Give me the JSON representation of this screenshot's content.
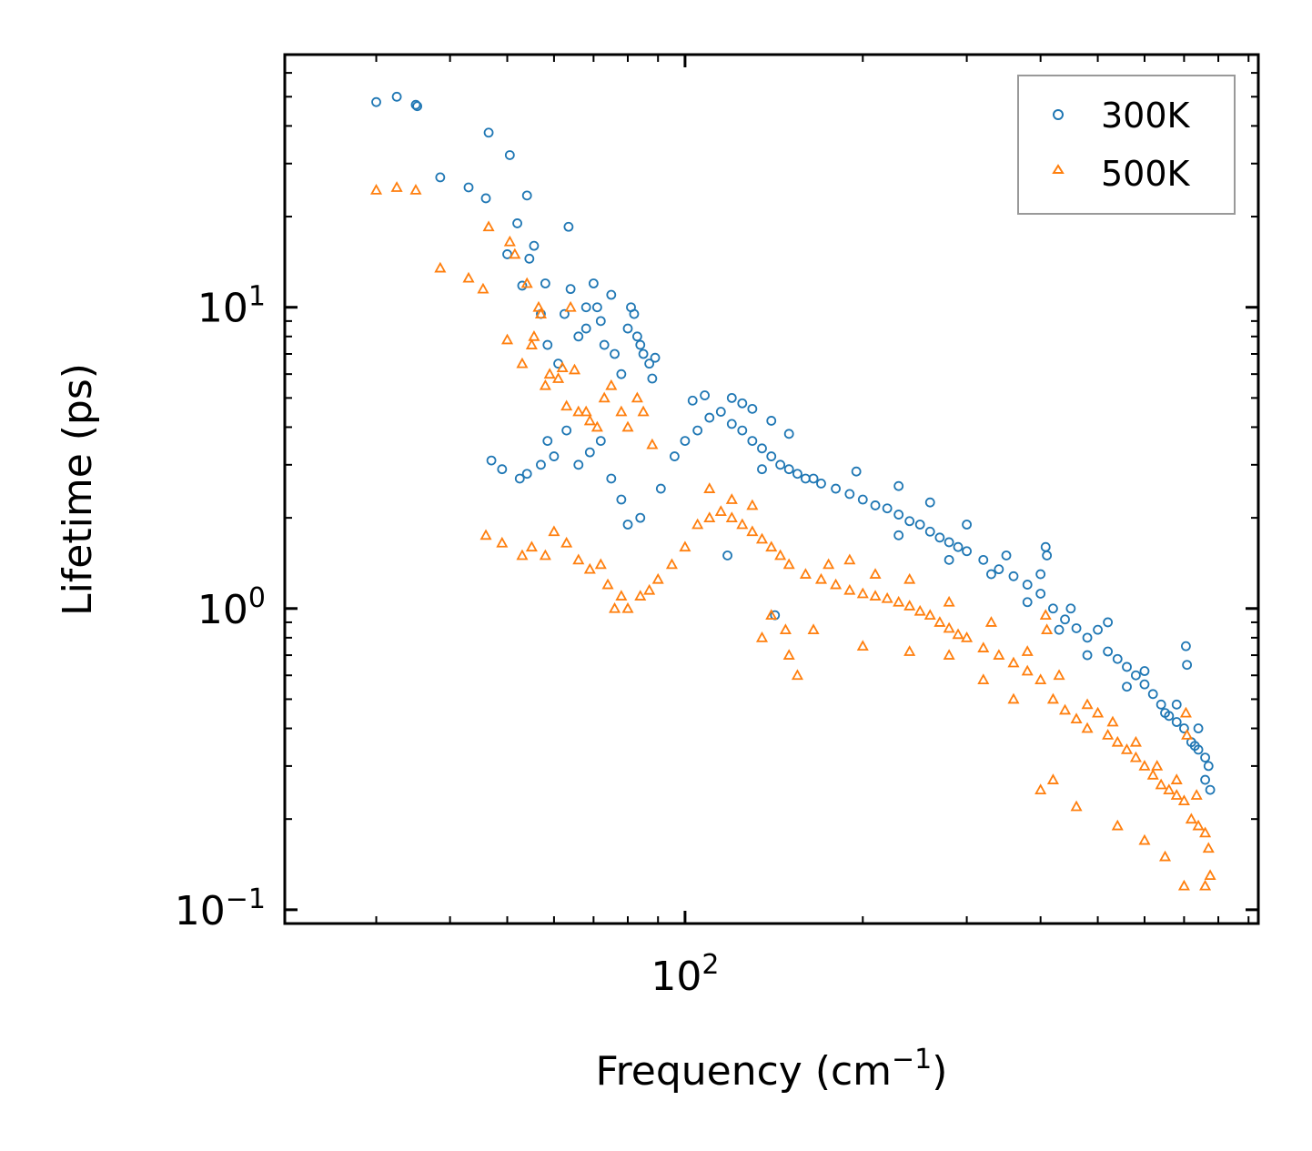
{
  "chart_data": {
    "type": "scatter",
    "title": "",
    "xlabel": "Frequency (cm",
    "xlabel_sup": "−1",
    "xlabel_close": ")",
    "ylabel": "Lifetime (ps)",
    "xscale": "log",
    "yscale": "log",
    "xlim": [
      21,
      935
    ],
    "ylim": [
      0.09,
      69
    ],
    "x_ticks": [
      {
        "value": 100,
        "base": "10",
        "exp": "2"
      }
    ],
    "y_ticks": [
      {
        "value": 0.1,
        "base": "10",
        "exp": "−1"
      },
      {
        "value": 1,
        "base": "10",
        "exp": "0"
      },
      {
        "value": 10,
        "base": "10",
        "exp": "1"
      }
    ],
    "grid": false,
    "legend_position": "top-right",
    "series": [
      {
        "name": "300K",
        "marker": "circle",
        "color": "#1f77b4",
        "points": [
          [
            30,
            48
          ],
          [
            32.5,
            50
          ],
          [
            35,
            47
          ],
          [
            35.2,
            46.5
          ],
          [
            38.5,
            27
          ],
          [
            43,
            25
          ],
          [
            46,
            23
          ],
          [
            46.5,
            38
          ],
          [
            50,
            15
          ],
          [
            50.5,
            32
          ],
          [
            52,
            19
          ],
          [
            53,
            11.8
          ],
          [
            54,
            23.5
          ],
          [
            54.5,
            14.5
          ],
          [
            55.5,
            16
          ],
          [
            57,
            9.5
          ],
          [
            58,
            12
          ],
          [
            58.5,
            7.5
          ],
          [
            61,
            6.5
          ],
          [
            62.5,
            9.5
          ],
          [
            63.5,
            18.5
          ],
          [
            64,
            11.5
          ],
          [
            66,
            8
          ],
          [
            68,
            10
          ],
          [
            68,
            8.5
          ],
          [
            70,
            12
          ],
          [
            71,
            10
          ],
          [
            72,
            9
          ],
          [
            73,
            7.5
          ],
          [
            75,
            11
          ],
          [
            76,
            7
          ],
          [
            78,
            6
          ],
          [
            80,
            8.5
          ],
          [
            81,
            10
          ],
          [
            82,
            9.5
          ],
          [
            83,
            8
          ],
          [
            84,
            7.5
          ],
          [
            85,
            7
          ],
          [
            87,
            6.5
          ],
          [
            88,
            5.8
          ],
          [
            89,
            6.8
          ],
          [
            47,
            3.1
          ],
          [
            49,
            2.9
          ],
          [
            52.5,
            2.7
          ],
          [
            54,
            2.8
          ],
          [
            57,
            3.0
          ],
          [
            58.5,
            3.6
          ],
          [
            60,
            3.2
          ],
          [
            63,
            3.9
          ],
          [
            66,
            3.0
          ],
          [
            69,
            3.3
          ],
          [
            72,
            3.6
          ],
          [
            75,
            2.7
          ],
          [
            78,
            2.3
          ],
          [
            80,
            1.9
          ],
          [
            84,
            2.0
          ],
          [
            91,
            2.5
          ],
          [
            96,
            3.2
          ],
          [
            100,
            3.6
          ],
          [
            105,
            3.9
          ],
          [
            110,
            4.3
          ],
          [
            115,
            4.5
          ],
          [
            120,
            4.1
          ],
          [
            125,
            3.9
          ],
          [
            130,
            3.6
          ],
          [
            135,
            3.4
          ],
          [
            140,
            3.2
          ],
          [
            145,
            3.0
          ],
          [
            150,
            2.9
          ],
          [
            155,
            2.8
          ],
          [
            160,
            2.7
          ],
          [
            170,
            2.6
          ],
          [
            180,
            2.5
          ],
          [
            190,
            2.4
          ],
          [
            200,
            2.3
          ],
          [
            210,
            2.2
          ],
          [
            220,
            2.15
          ],
          [
            230,
            2.05
          ],
          [
            240,
            1.95
          ],
          [
            250,
            1.9
          ],
          [
            260,
            1.8
          ],
          [
            270,
            1.72
          ],
          [
            280,
            1.66
          ],
          [
            290,
            1.6
          ],
          [
            300,
            1.55
          ],
          [
            320,
            1.45
          ],
          [
            340,
            1.35
          ],
          [
            360,
            1.28
          ],
          [
            380,
            1.2
          ],
          [
            400,
            1.12
          ],
          [
            408,
            1.6
          ],
          [
            410,
            1.5
          ],
          [
            420,
            1.0
          ],
          [
            440,
            0.92
          ],
          [
            460,
            0.86
          ],
          [
            480,
            0.8
          ],
          [
            500,
            0.85
          ],
          [
            520,
            0.72
          ],
          [
            540,
            0.68
          ],
          [
            560,
            0.64
          ],
          [
            580,
            0.6
          ],
          [
            600,
            0.56
          ],
          [
            620,
            0.52
          ],
          [
            640,
            0.48
          ],
          [
            660,
            0.44
          ],
          [
            680,
            0.42
          ],
          [
            700,
            0.4
          ],
          [
            705,
            0.75
          ],
          [
            708,
            0.65
          ],
          [
            720,
            0.36
          ],
          [
            740,
            0.34
          ],
          [
            760,
            0.32
          ],
          [
            770,
            0.3
          ],
          [
            775,
            0.25
          ],
          [
            230,
            2.55
          ],
          [
            260,
            2.25
          ],
          [
            300,
            1.9
          ],
          [
            350,
            1.5
          ],
          [
            400,
            1.3
          ],
          [
            450,
            1.0
          ],
          [
            520,
            0.9
          ],
          [
            600,
            0.62
          ],
          [
            680,
            0.48
          ],
          [
            740,
            0.4
          ],
          [
            135,
            2.9
          ],
          [
            165,
            2.7
          ],
          [
            195,
            2.85
          ],
          [
            230,
            1.75
          ],
          [
            280,
            1.45
          ],
          [
            330,
            1.3
          ],
          [
            380,
            1.05
          ],
          [
            430,
            0.85
          ],
          [
            480,
            0.7
          ],
          [
            560,
            0.55
          ],
          [
            650,
            0.45
          ],
          [
            730,
            0.35
          ],
          [
            760,
            0.27
          ],
          [
            120,
            5.0
          ],
          [
            125,
            4.8
          ],
          [
            130,
            4.6
          ],
          [
            103,
            4.9
          ],
          [
            108,
            5.1
          ],
          [
            140,
            4.2
          ],
          [
            150,
            3.8
          ],
          [
            118,
            1.5
          ],
          [
            142,
            0.95
          ]
        ]
      },
      {
        "name": "500K",
        "marker": "triangle",
        "color": "#ff7f0e",
        "points": [
          [
            30,
            24.5
          ],
          [
            32.5,
            25
          ],
          [
            35,
            24.5
          ],
          [
            38.5,
            13.5
          ],
          [
            43,
            12.5
          ],
          [
            45.5,
            11.5
          ],
          [
            46.5,
            18.5
          ],
          [
            50,
            7.8
          ],
          [
            50.5,
            16.5
          ],
          [
            51.5,
            15
          ],
          [
            53,
            6.5
          ],
          [
            54,
            12
          ],
          [
            55,
            7.5
          ],
          [
            55.5,
            8
          ],
          [
            56.5,
            10
          ],
          [
            57,
            9.5
          ],
          [
            58,
            5.5
          ],
          [
            59,
            6
          ],
          [
            61,
            5.8
          ],
          [
            62,
            6.3
          ],
          [
            63,
            4.7
          ],
          [
            64,
            10
          ],
          [
            65,
            6.2
          ],
          [
            66,
            4.5
          ],
          [
            68,
            4.5
          ],
          [
            69,
            4.2
          ],
          [
            71,
            4.0
          ],
          [
            73,
            5.0
          ],
          [
            75,
            5.5
          ],
          [
            78,
            4.5
          ],
          [
            80,
            4.0
          ],
          [
            83,
            5.0
          ],
          [
            85,
            4.5
          ],
          [
            88,
            3.5
          ],
          [
            46,
            1.75
          ],
          [
            49,
            1.65
          ],
          [
            53,
            1.5
          ],
          [
            55,
            1.6
          ],
          [
            58,
            1.5
          ],
          [
            60,
            1.8
          ],
          [
            63,
            1.65
          ],
          [
            66,
            1.45
          ],
          [
            69,
            1.35
          ],
          [
            72,
            1.4
          ],
          [
            74,
            1.2
          ],
          [
            76,
            1.0
          ],
          [
            78,
            1.1
          ],
          [
            80,
            1.0
          ],
          [
            84,
            1.1
          ],
          [
            87,
            1.15
          ],
          [
            90,
            1.25
          ],
          [
            95,
            1.4
          ],
          [
            100,
            1.6
          ],
          [
            105,
            1.9
          ],
          [
            110,
            2.0
          ],
          [
            115,
            2.1
          ],
          [
            120,
            2.0
          ],
          [
            125,
            1.9
          ],
          [
            130,
            1.8
          ],
          [
            135,
            1.7
          ],
          [
            140,
            1.6
          ],
          [
            145,
            1.5
          ],
          [
            150,
            1.4
          ],
          [
            160,
            1.3
          ],
          [
            170,
            1.25
          ],
          [
            180,
            1.2
          ],
          [
            190,
            1.15
          ],
          [
            200,
            1.12
          ],
          [
            210,
            1.1
          ],
          [
            220,
            1.08
          ],
          [
            230,
            1.05
          ],
          [
            240,
            1.02
          ],
          [
            250,
            0.98
          ],
          [
            260,
            0.95
          ],
          [
            270,
            0.9
          ],
          [
            280,
            0.86
          ],
          [
            290,
            0.82
          ],
          [
            300,
            0.8
          ],
          [
            320,
            0.74
          ],
          [
            340,
            0.7
          ],
          [
            360,
            0.66
          ],
          [
            380,
            0.62
          ],
          [
            400,
            0.58
          ],
          [
            408,
            0.95
          ],
          [
            410,
            0.85
          ],
          [
            420,
            0.5
          ],
          [
            440,
            0.46
          ],
          [
            460,
            0.43
          ],
          [
            480,
            0.4
          ],
          [
            500,
            0.45
          ],
          [
            520,
            0.38
          ],
          [
            540,
            0.36
          ],
          [
            560,
            0.34
          ],
          [
            580,
            0.32
          ],
          [
            600,
            0.3
          ],
          [
            620,
            0.28
          ],
          [
            640,
            0.26
          ],
          [
            660,
            0.25
          ],
          [
            680,
            0.24
          ],
          [
            700,
            0.23
          ],
          [
            705,
            0.45
          ],
          [
            708,
            0.38
          ],
          [
            720,
            0.2
          ],
          [
            740,
            0.19
          ],
          [
            760,
            0.18
          ],
          [
            770,
            0.16
          ],
          [
            775,
            0.13
          ],
          [
            110,
            2.5
          ],
          [
            120,
            2.3
          ],
          [
            130,
            2.2
          ],
          [
            140,
            0.95
          ],
          [
            150,
            0.7
          ],
          [
            155,
            0.6
          ],
          [
            175,
            1.4
          ],
          [
            190,
            1.45
          ],
          [
            210,
            1.3
          ],
          [
            240,
            1.25
          ],
          [
            280,
            1.05
          ],
          [
            330,
            0.9
          ],
          [
            380,
            0.72
          ],
          [
            430,
            0.6
          ],
          [
            480,
            0.48
          ],
          [
            530,
            0.42
          ],
          [
            580,
            0.36
          ],
          [
            630,
            0.3
          ],
          [
            680,
            0.27
          ],
          [
            735,
            0.24
          ],
          [
            400,
            0.25
          ],
          [
            420,
            0.27
          ],
          [
            460,
            0.22
          ],
          [
            540,
            0.19
          ],
          [
            600,
            0.17
          ],
          [
            650,
            0.15
          ],
          [
            700,
            0.12
          ],
          [
            760,
            0.12
          ],
          [
            135,
            0.8
          ],
          [
            148,
            0.85
          ],
          [
            165,
            0.85
          ],
          [
            200,
            0.75
          ],
          [
            240,
            0.72
          ],
          [
            280,
            0.7
          ],
          [
            320,
            0.58
          ],
          [
            360,
            0.5
          ]
        ]
      }
    ]
  }
}
